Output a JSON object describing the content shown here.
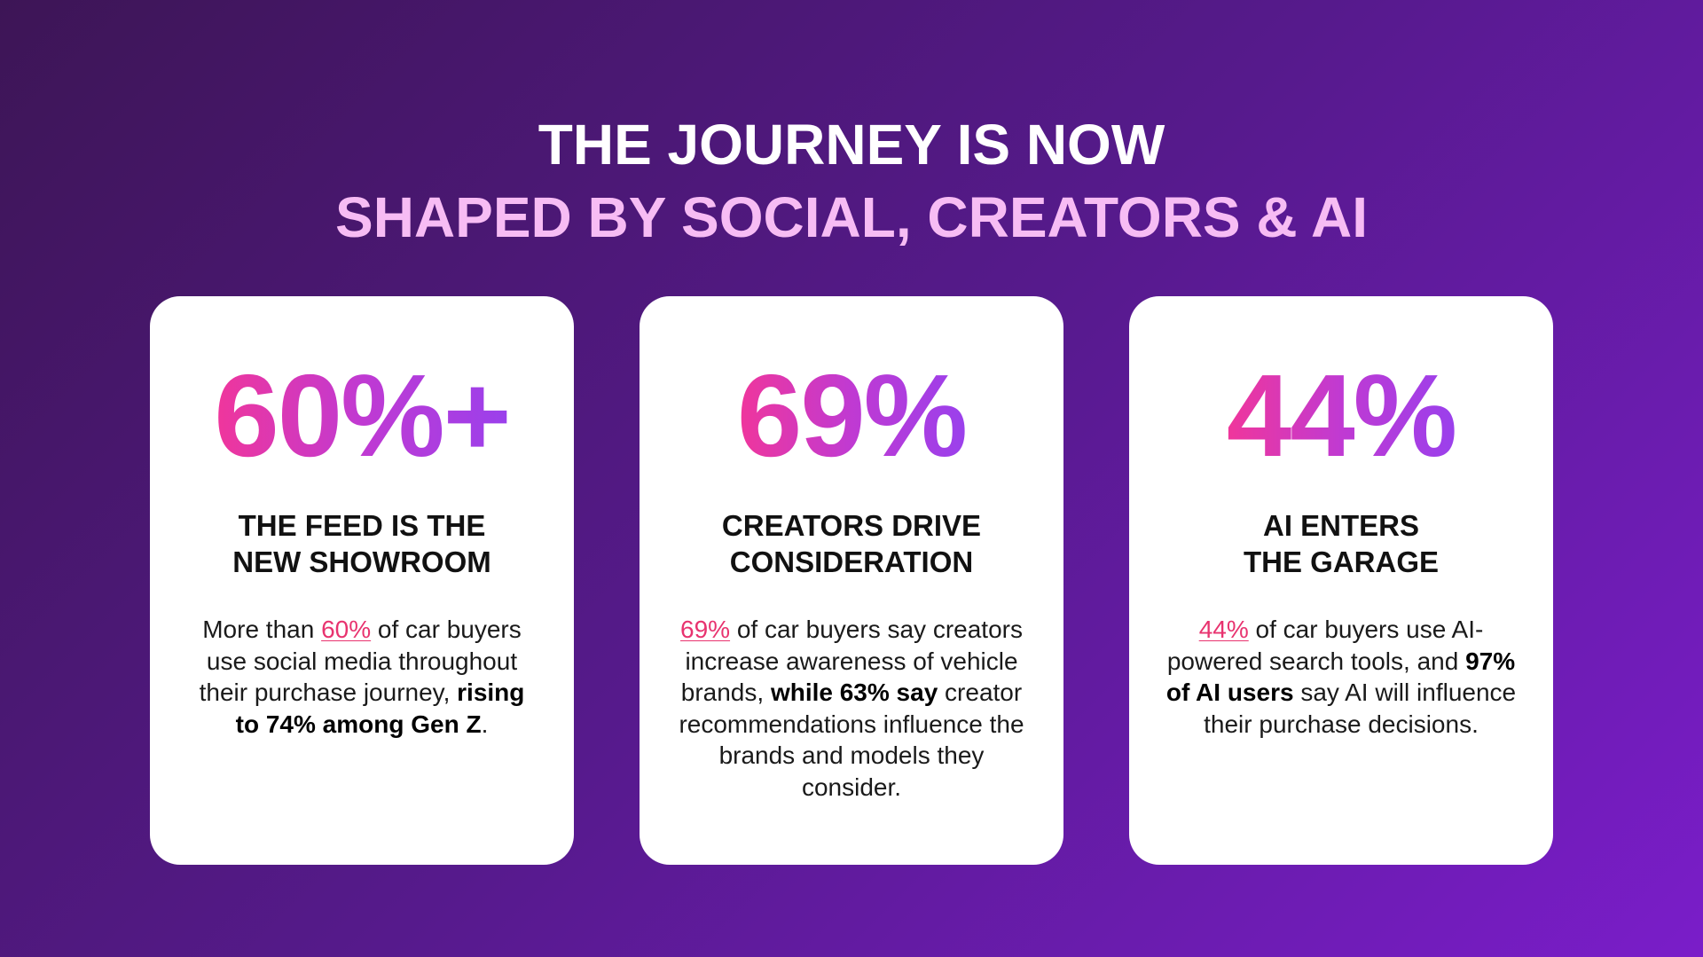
{
  "header": {
    "title_lines": [
      "THE JOURNEY IS NOW",
      "SHAPED BY SOCIAL, CREATORS & AI"
    ]
  },
  "cards": [
    {
      "stat": "60%+",
      "heading_lines": [
        "THE FEED IS THE",
        "NEW SHOWROOM"
      ],
      "body": [
        "More than ",
        "60%",
        " of car buyers use social media throughout their purchase journey, ",
        "rising to 74% among Gen Z",
        "."
      ]
    },
    {
      "stat": "69%",
      "heading_lines": [
        "CREATORS DRIVE",
        "CONSIDERATION"
      ],
      "body": [
        "69%",
        " of car buyers say creators increase awareness of vehicle brands, ",
        "while 63% say",
        " creator recommendations influence the brands and models they consider."
      ]
    },
    {
      "stat": "44%",
      "heading_lines": [
        "AI ENTERS",
        "THE GARAGE"
      ],
      "body": [
        "44%",
        " of car buyers use AI-powered search tools, and ",
        "97% of AI users",
        " say AI will influence their purchase decisions."
      ]
    }
  ]
}
